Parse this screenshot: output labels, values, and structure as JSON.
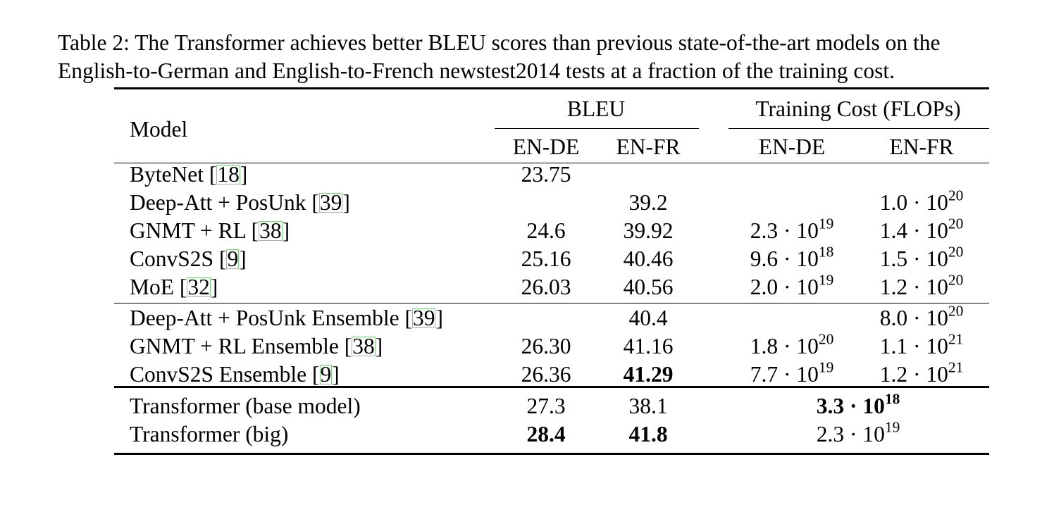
{
  "caption": {
    "line1": "Table 2: The Transformer achieves better BLEU scores than previous state-of-the-art models on the",
    "line2": "English-to-German and English-to-French newstest2014 tests at a fraction of the training cost."
  },
  "header": {
    "model": "Model",
    "bleu": "BLEU",
    "training_cost": "Training Cost (FLOPs)",
    "bleu_en_de": "EN-DE",
    "bleu_en_fr": "EN-FR",
    "cost_en_de": "EN-DE",
    "cost_en_fr": "EN-FR"
  },
  "rows": [
    {
      "model": "ByteNet",
      "cite": "18",
      "bleu_en_de": "23.75",
      "bleu_en_fr": "",
      "cost_en_de": null,
      "cost_en_fr": null
    },
    {
      "model": "Deep-Att + PosUnk",
      "cite": "39",
      "bleu_en_de": "",
      "bleu_en_fr": "39.2",
      "cost_en_de": null,
      "cost_en_fr": {
        "m": "1.0",
        "e": "20"
      }
    },
    {
      "model": "GNMT + RL",
      "cite": "38",
      "bleu_en_de": "24.6",
      "bleu_en_fr": "39.92",
      "cost_en_de": {
        "m": "2.3",
        "e": "19"
      },
      "cost_en_fr": {
        "m": "1.4",
        "e": "20"
      }
    },
    {
      "model": "ConvS2S",
      "cite": "9",
      "bleu_en_de": "25.16",
      "bleu_en_fr": "40.46",
      "cost_en_de": {
        "m": "9.6",
        "e": "18"
      },
      "cost_en_fr": {
        "m": "1.5",
        "e": "20"
      }
    },
    {
      "model": "MoE",
      "cite": "32",
      "bleu_en_de": "26.03",
      "bleu_en_fr": "40.56",
      "cost_en_de": {
        "m": "2.0",
        "e": "19"
      },
      "cost_en_fr": {
        "m": "1.2",
        "e": "20"
      }
    },
    {
      "model": "Deep-Att + PosUnk Ensemble",
      "cite": "39",
      "bleu_en_de": "",
      "bleu_en_fr": "40.4",
      "cost_en_de": null,
      "cost_en_fr": {
        "m": "8.0",
        "e": "20"
      }
    },
    {
      "model": "GNMT + RL Ensemble",
      "cite": "38",
      "bleu_en_de": "26.30",
      "bleu_en_fr": "41.16",
      "cost_en_de": {
        "m": "1.8",
        "e": "20"
      },
      "cost_en_fr": {
        "m": "1.1",
        "e": "21"
      }
    },
    {
      "model": "ConvS2S Ensemble",
      "cite": "9",
      "bleu_en_de": "26.36",
      "bleu_en_fr": "41.29",
      "bleu_en_fr_bold": true,
      "cost_en_de": {
        "m": "7.7",
        "e": "19"
      },
      "cost_en_fr": {
        "m": "1.2",
        "e": "21"
      }
    },
    {
      "model": "Transformer (base model)",
      "cite": "",
      "bleu_en_de": "27.3",
      "bleu_en_fr": "38.1",
      "cost_merged": {
        "m": "3.3",
        "e": "18",
        "bold": true
      }
    },
    {
      "model": "Transformer (big)",
      "cite": "",
      "bleu_en_de": "28.4",
      "bleu_en_de_bold": true,
      "bleu_en_fr": "41.8",
      "bleu_en_fr_bold": true,
      "cost_merged": {
        "m": "2.3",
        "e": "19"
      }
    }
  ]
}
